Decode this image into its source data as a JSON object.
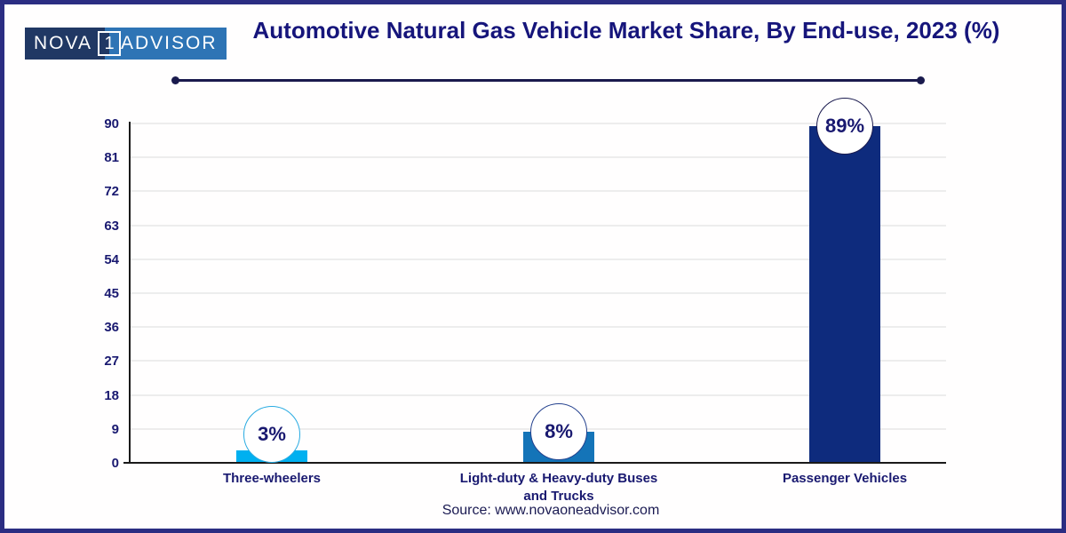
{
  "logo": {
    "part1": "NOVA",
    "number": "1",
    "part2": "ADVISOR"
  },
  "chart_data": {
    "type": "bar",
    "title": "Automotive Natural Gas Vehicle Market Share, By End-use, 2023 (%)",
    "categories": [
      "Three-wheelers",
      "Light-duty & Heavy-duty Buses and Trucks",
      "Passenger Vehicles"
    ],
    "values": [
      3,
      8,
      89
    ],
    "value_labels": [
      "3%",
      "8%",
      "89%"
    ],
    "bar_colors": [
      "#00b0f0",
      "#1474b8",
      "#0e2b7d"
    ],
    "circle_border_colors": [
      "#29abe2",
      "#24418e",
      "#1b1b4f"
    ],
    "y_ticks": [
      0,
      9,
      18,
      27,
      36,
      45,
      54,
      63,
      72,
      81,
      90
    ],
    "ylim": [
      0,
      90
    ],
    "grid": true,
    "legend": false,
    "xlabel": "",
    "ylabel": ""
  },
  "footer": {
    "source": "Source: www.novaoneadvisor.com"
  },
  "colors": {
    "frame_border": "#2b2d82",
    "title_text": "#16157b",
    "axis": "#1a1a1a",
    "gridline": "#ededed",
    "tick_text": "#191970",
    "logo_dark": "#203864",
    "logo_blue": "#2e74b5",
    "divider": "#1a1a4d"
  }
}
